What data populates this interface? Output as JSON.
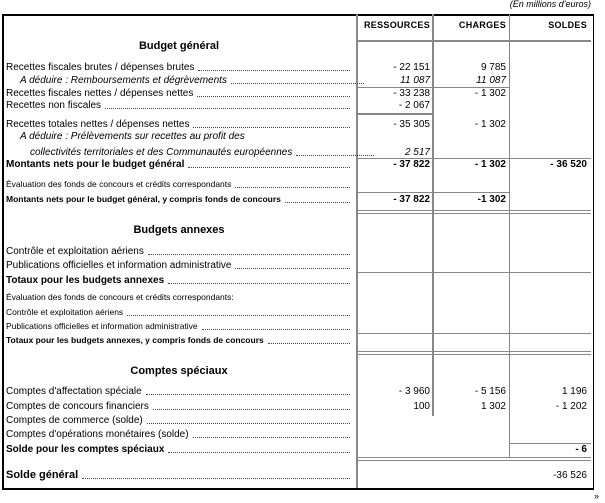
{
  "unit_note": "(En millions d'euros)",
  "headers": [
    "RESSOURCES",
    "CHARGES",
    "SOLDES"
  ],
  "budget_general": {
    "title": "Budget général",
    "rows": [
      {
        "label": "Recettes fiscales brutes / dépenses brutes",
        "ressources": "- 22 151",
        "charges": "9 785",
        "soldes": ""
      },
      {
        "label": "A déduire : Remboursements et dégrèvements",
        "ressources": "11 087",
        "charges": "11 087",
        "soldes": ""
      },
      {
        "label": "Recettes fiscales nettes / dépenses nettes",
        "ressources": "- 33 238",
        "charges": "- 1 302",
        "soldes": ""
      },
      {
        "label": "Recettes non fiscales",
        "ressources": "- 2 067",
        "charges": "",
        "soldes": ""
      },
      {
        "label": "Recettes totales nettes / dépenses nettes",
        "ressources": "- 35 305",
        "charges": "- 1 302",
        "soldes": ""
      },
      {
        "label": "A déduire : Prélèvements sur recettes au profit des",
        "ressources": "",
        "charges": "",
        "soldes": ""
      },
      {
        "label": "collectivités territoriales et des Communautés européennes",
        "ressources": "2 517",
        "charges": "",
        "soldes": ""
      },
      {
        "label": "Montants nets pour le budget général",
        "ressources": "- 37 822",
        "charges": "- 1 302",
        "soldes": "- 36 520"
      },
      {
        "label": "Évaluation des fonds de concours et crédits correspondants",
        "ressources": "",
        "charges": "",
        "soldes": ""
      },
      {
        "label": "Montants nets pour le budget général, y compris fonds de concours",
        "ressources": "- 37 822",
        "charges": "-1 302",
        "soldes": ""
      }
    ]
  },
  "budgets_annexes": {
    "title": "Budgets annexes",
    "rows": [
      {
        "label": "Contrôle et exploitation aériens"
      },
      {
        "label": "Publications officielles et information administrative"
      },
      {
        "label": "Totaux pour les budgets annexes"
      },
      {
        "label": "Évaluation des fonds de concours et crédits correspondants:"
      },
      {
        "label": "Contrôle et exploitation aériens"
      },
      {
        "label": "Publications officielles et information administrative"
      },
      {
        "label": "Totaux pour les budgets annexes, y compris fonds de concours"
      }
    ]
  },
  "comptes_speciaux": {
    "title": "Comptes spéciaux",
    "rows": [
      {
        "label": "Comptes d'affectation spéciale",
        "ressources": "- 3 960",
        "charges": "- 5 156",
        "soldes": "1 196"
      },
      {
        "label": "Comptes de concours financiers",
        "ressources": "100",
        "charges": "1 302",
        "soldes": "- 1 202"
      },
      {
        "label": "Comptes de commerce (solde)",
        "ressources": "",
        "charges": "",
        "soldes": ""
      },
      {
        "label": "Comptes d'opérations monétaires (solde)",
        "ressources": "",
        "charges": "",
        "soldes": ""
      },
      {
        "label": "Solde pour les comptes spéciaux",
        "ressources": "",
        "charges": "",
        "soldes": "- 6"
      }
    ]
  },
  "solde_general": {
    "label": "Solde général",
    "value": "-36 526"
  },
  "more_marker": "»"
}
